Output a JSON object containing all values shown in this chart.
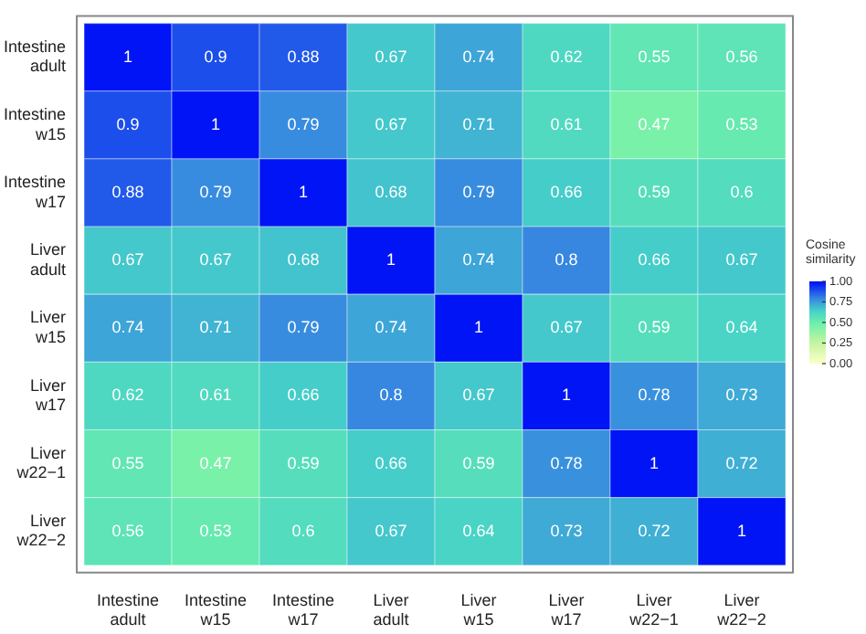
{
  "chart_data": {
    "type": "heatmap",
    "clabel": "Cosine similarity",
    "categories": [
      "Intestine adult",
      "Intestine w15",
      "Intestine w17",
      "Liver adult",
      "Liver w15",
      "Liver w17",
      "Liver w22−1",
      "Liver w22−2"
    ],
    "y_categories": [
      "Intestine adult",
      "Intestine w15",
      "Intestine w17",
      "Liver adult",
      "Liver w15",
      "Liver w17",
      "Liver w22−1",
      "Liver w22−2"
    ],
    "cells": [
      [
        1,
        0.9,
        0.88,
        0.67,
        0.74,
        0.62,
        0.55,
        0.56
      ],
      [
        0.9,
        1,
        0.79,
        0.67,
        0.71,
        0.61,
        0.47,
        0.53
      ],
      [
        0.88,
        0.79,
        1,
        0.68,
        0.79,
        0.66,
        0.59,
        0.6
      ],
      [
        0.67,
        0.67,
        0.68,
        1,
        0.74,
        0.8,
        0.66,
        0.67
      ],
      [
        0.74,
        0.71,
        0.79,
        0.74,
        1,
        0.67,
        0.59,
        0.64
      ],
      [
        0.62,
        0.61,
        0.66,
        0.8,
        0.67,
        1,
        0.78,
        0.73
      ],
      [
        0.55,
        0.47,
        0.59,
        0.66,
        0.59,
        0.78,
        1,
        0.72
      ],
      [
        0.56,
        0.53,
        0.6,
        0.67,
        0.64,
        0.73,
        0.72,
        1
      ]
    ],
    "clim": [
      0,
      1
    ],
    "cticks": [
      {
        "value": 0,
        "label": "0.00"
      },
      {
        "value": 0.25,
        "label": "0.25"
      },
      {
        "value": 0.5,
        "label": "0.50"
      },
      {
        "value": 0.75,
        "label": "0.75"
      },
      {
        "value": 1,
        "label": "1.00"
      }
    ],
    "data_labels": true,
    "grid": false
  }
}
